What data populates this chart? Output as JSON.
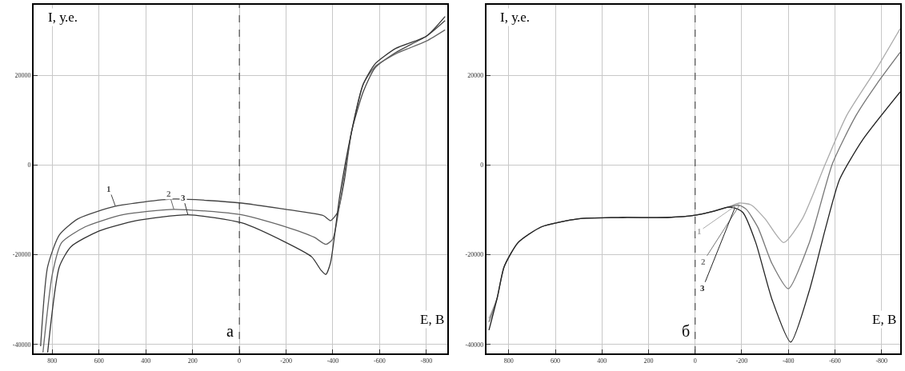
{
  "chart_data": [
    {
      "type": "line",
      "xlabel": "E, В",
      "ylabel": "I, у.е.",
      "annotations": [
        {
          "text": "а",
          "x": 0,
          "y": -37000
        }
      ],
      "xlim": [
        880,
        -890
      ],
      "ylim": [
        -42000,
        35700
      ],
      "xticks": [
        800,
        600,
        400,
        200,
        0,
        -200,
        -400,
        -600,
        -800
      ],
      "yticks": [
        20000,
        0,
        -20000,
        -40000
      ],
      "grid": true,
      "legend": false,
      "marker": "none",
      "line_style": "solid",
      "ref_lines": [
        {
          "axis": "x",
          "value": 0,
          "line_style": "dashed",
          "color": "#333333"
        }
      ],
      "series": [
        {
          "name": "1",
          "color": "#444444",
          "x": [
            850,
            820,
            770,
            690,
            530,
            280,
            -10,
            -200,
            -360,
            -390,
            -420,
            -450,
            -480,
            -530,
            -580,
            -670,
            -800,
            -880
          ],
          "values": [
            -40400,
            -22700,
            -15600,
            -12000,
            -9200,
            -7600,
            -8500,
            -9900,
            -11300,
            -12400,
            -10600,
            -3200,
            7400,
            16300,
            21600,
            25100,
            28700,
            32200
          ]
        },
        {
          "name": "2",
          "color": "#666666",
          "x": [
            840,
            800,
            760,
            660,
            500,
            280,
            -10,
            -200,
            -320,
            -370,
            -400,
            -430,
            -480,
            -530,
            -580,
            -670,
            -800,
            -880
          ],
          "values": [
            -41800,
            -24400,
            -17300,
            -13800,
            -11100,
            -9900,
            -11100,
            -13800,
            -16100,
            -17700,
            -16500,
            -8500,
            7400,
            18000,
            21900,
            24800,
            27600,
            30100
          ]
        },
        {
          "name": "3",
          "color": "#333333",
          "x": [
            820,
            770,
            720,
            600,
            440,
            220,
            -10,
            -200,
            -310,
            -350,
            -370,
            -390,
            -430,
            -480,
            -530,
            -580,
            -670,
            -800,
            -880
          ],
          "values": [
            -41800,
            -22700,
            -18200,
            -14700,
            -12400,
            -11100,
            -12900,
            -17300,
            -20500,
            -23500,
            -24400,
            -21800,
            -6700,
            7400,
            18000,
            22500,
            26000,
            28700,
            33100
          ]
        }
      ]
    },
    {
      "type": "line",
      "xlabel": "E, В",
      "ylabel": "I, у.е.",
      "annotations": [
        {
          "text": "б",
          "x": 0,
          "y": -37000
        }
      ],
      "xlim": [
        896,
        -880
      ],
      "ylim": [
        -42000,
        35700
      ],
      "xticks": [
        800,
        600,
        400,
        200,
        0,
        -200,
        -400,
        -600,
        -800
      ],
      "yticks": [
        20000,
        0,
        -20000,
        -40000
      ],
      "grid": true,
      "legend": false,
      "marker": "none",
      "line_style": "solid",
      "ref_lines": [
        {
          "axis": "x",
          "value": 0,
          "line_style": "dashed",
          "color": "#333333"
        }
      ],
      "series": [
        {
          "name": "1",
          "color": "#aaaaaa",
          "x": [
            885,
            850,
            820,
            760,
            660,
            500,
            310,
            120,
            0,
            -80,
            -140,
            -190,
            -240,
            -300,
            -380,
            -460,
            -560,
            -650,
            -780,
            -880
          ],
          "values": [
            -34200,
            -29700,
            -22700,
            -17300,
            -13800,
            -12000,
            -11700,
            -11700,
            -11200,
            -10300,
            -9400,
            -8500,
            -8900,
            -12000,
            -17300,
            -12000,
            400,
            11000,
            21600,
            30400
          ]
        },
        {
          "name": "2",
          "color": "#777777",
          "x": [
            885,
            850,
            820,
            760,
            660,
            500,
            310,
            120,
            0,
            -80,
            -140,
            -190,
            -220,
            -270,
            -330,
            -400,
            -490,
            -590,
            -690,
            -780,
            -880
          ],
          "values": [
            -35000,
            -29700,
            -22700,
            -17300,
            -13800,
            -12000,
            -11700,
            -11700,
            -11200,
            -10300,
            -9400,
            -9000,
            -9900,
            -14000,
            -22000,
            -27600,
            -17300,
            400,
            11000,
            18100,
            25100
          ]
        },
        {
          "name": "3",
          "color": "#222222",
          "x": [
            885,
            850,
            820,
            760,
            660,
            500,
            310,
            120,
            0,
            -80,
            -140,
            -170,
            -205,
            -260,
            -330,
            -410,
            -490,
            -560,
            -620,
            -720,
            -880
          ],
          "values": [
            -36800,
            -29700,
            -22700,
            -17300,
            -13800,
            -12000,
            -11700,
            -11700,
            -11200,
            -10300,
            -9400,
            -9600,
            -10600,
            -17300,
            -30000,
            -39500,
            -28000,
            -14000,
            -3200,
            5700,
            16300
          ]
        }
      ]
    }
  ]
}
